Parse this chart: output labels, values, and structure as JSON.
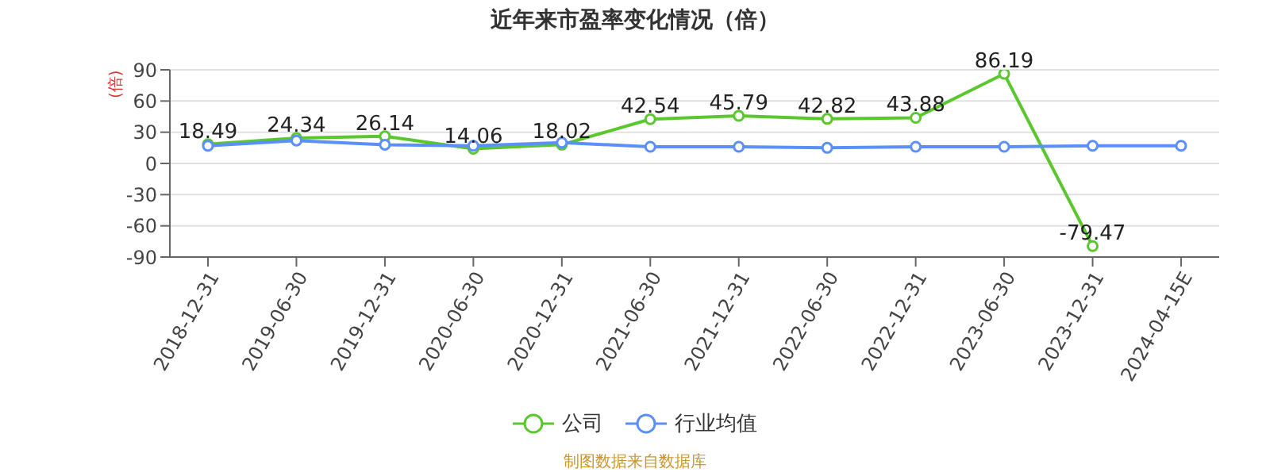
{
  "chart_data": {
    "type": "line",
    "title": "近年来市盈率变化情况（倍）",
    "ylabel": "(倍)",
    "categories": [
      "2018-12-31",
      "2019-06-30",
      "2019-12-31",
      "2020-06-30",
      "2020-12-31",
      "2021-06-30",
      "2021-12-31",
      "2022-06-30",
      "2022-12-31",
      "2023-06-30",
      "2023-12-31",
      "2024-04-15E"
    ],
    "series": [
      {
        "name": "公司",
        "color": "#5ac72e",
        "values": [
          18.49,
          24.34,
          26.14,
          14.06,
          18.02,
          42.54,
          45.79,
          42.82,
          43.88,
          86.19,
          -79.47,
          null
        ],
        "data_labels": true
      },
      {
        "name": "行业均值",
        "color": "#5b8ff9",
        "values": [
          17,
          22,
          18,
          17,
          20,
          16,
          16,
          15,
          16,
          16,
          17,
          17
        ]
      }
    ],
    "ylim": [
      -90,
      90
    ],
    "yticks": [
      -90,
      -60,
      -30,
      0,
      30,
      60,
      90
    ],
    "grid": "y",
    "legend": "bottom",
    "marker": "circle",
    "line_style": "solid",
    "annotations": [
      "制图数据来自数据库"
    ]
  }
}
